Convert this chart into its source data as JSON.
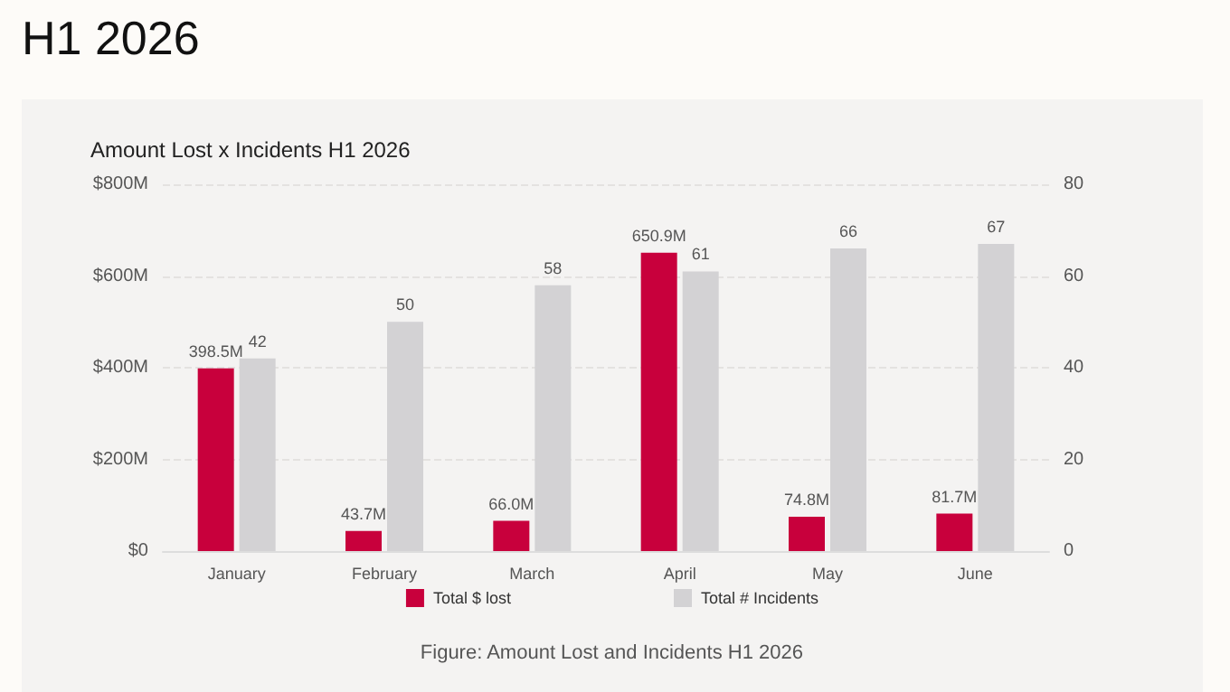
{
  "chart_data": {
    "type": "bar",
    "title": "H1 2026",
    "subtitle": "Amount Lost x Incidents H1 2026",
    "categories": [
      "January",
      "February",
      "March",
      "April",
      "May",
      "June"
    ],
    "series": [
      {
        "name": "Total $ lost",
        "color": "#c8003c",
        "values": [
          398.5,
          43.7,
          66.0,
          650.9,
          74.8,
          81.7
        ],
        "value_labels": [
          "398.5M",
          "43.7M",
          "66.0M",
          "650.9M",
          "74.8M",
          "81.7M"
        ]
      },
      {
        "name": "Total # Incidents",
        "color": "#d3d2d4",
        "axis": "y2",
        "values": [
          42,
          50,
          58,
          61,
          66,
          67
        ],
        "value_labels": [
          "42",
          "50",
          "58",
          "61",
          "66",
          "67"
        ]
      }
    ],
    "ylim": [
      0,
      800
    ],
    "yticks": [
      {
        "value": 0,
        "label": "$0"
      },
      {
        "value": 200,
        "label": "$200M"
      },
      {
        "value": 400,
        "label": "$400M"
      },
      {
        "value": 600,
        "label": "$600M"
      },
      {
        "value": 800,
        "label": "$800M"
      }
    ],
    "y2lim": [
      0,
      80
    ],
    "y2ticks": [
      0,
      20,
      40,
      60,
      80
    ],
    "grid": "y",
    "legend": "bottom",
    "annotations": [
      "Figure: Amount Lost and Incidents H1 2026"
    ]
  }
}
